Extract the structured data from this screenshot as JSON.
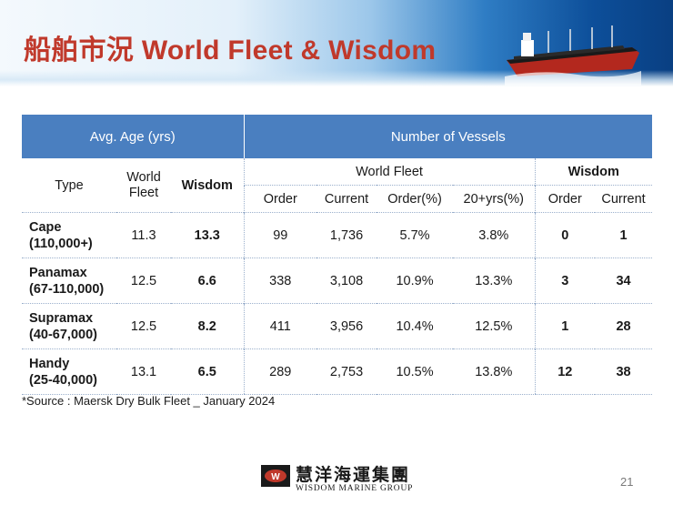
{
  "title": "船舶市況 World Fleet & Wisdom",
  "table": {
    "group_header_left": "Avg. Age (yrs)",
    "group_header_right": "Number of Vessels",
    "col_type": "Type",
    "col_world_fleet": "World Fleet",
    "col_wisdom": "Wisdom",
    "group_world_fleet": "World Fleet",
    "group_wisdom": "Wisdom",
    "sub_order": "Order",
    "sub_current": "Current",
    "sub_order_pct": "Order(%)",
    "sub_20yrs_pct": "20+yrs(%)",
    "sub_w_order": "Order",
    "sub_w_current": "Current",
    "rows": [
      {
        "type": "Cape",
        "range": "(110,000+)",
        "age_world": "11.3",
        "age_wisdom": "13.3",
        "order": "99",
        "current": "1,736",
        "order_pct": "5.7%",
        "yrs20_pct": "3.8%",
        "w_order": "0",
        "w_current": "1"
      },
      {
        "type": "Panamax",
        "range": "(67-110,000)",
        "age_world": "12.5",
        "age_wisdom": "6.6",
        "order": "338",
        "current": "3,108",
        "order_pct": "10.9%",
        "yrs20_pct": "13.3%",
        "w_order": "3",
        "w_current": "34"
      },
      {
        "type": "Supramax",
        "range": "(40-67,000)",
        "age_world": "12.5",
        "age_wisdom": "8.2",
        "order": "411",
        "current": "3,956",
        "order_pct": "10.4%",
        "yrs20_pct": "12.5%",
        "w_order": "1",
        "w_current": "28"
      },
      {
        "type": "Handy",
        "range": "(25-40,000)",
        "age_world": "13.1",
        "age_wisdom": "6.5",
        "order": "289",
        "current": "2,753",
        "order_pct": "10.5%",
        "yrs20_pct": "13.8%",
        "w_order": "12",
        "w_current": "38"
      }
    ]
  },
  "source": "*Source : Maersk Dry Bulk Fleet _ January 2024",
  "logo": {
    "emblem": "W",
    "chinese": "慧洋海運集團",
    "english": "WISDOM MARINE GROUP"
  },
  "page_number": "21",
  "colors": {
    "title": "#c0392b",
    "table_header": "#4a7fc0"
  }
}
